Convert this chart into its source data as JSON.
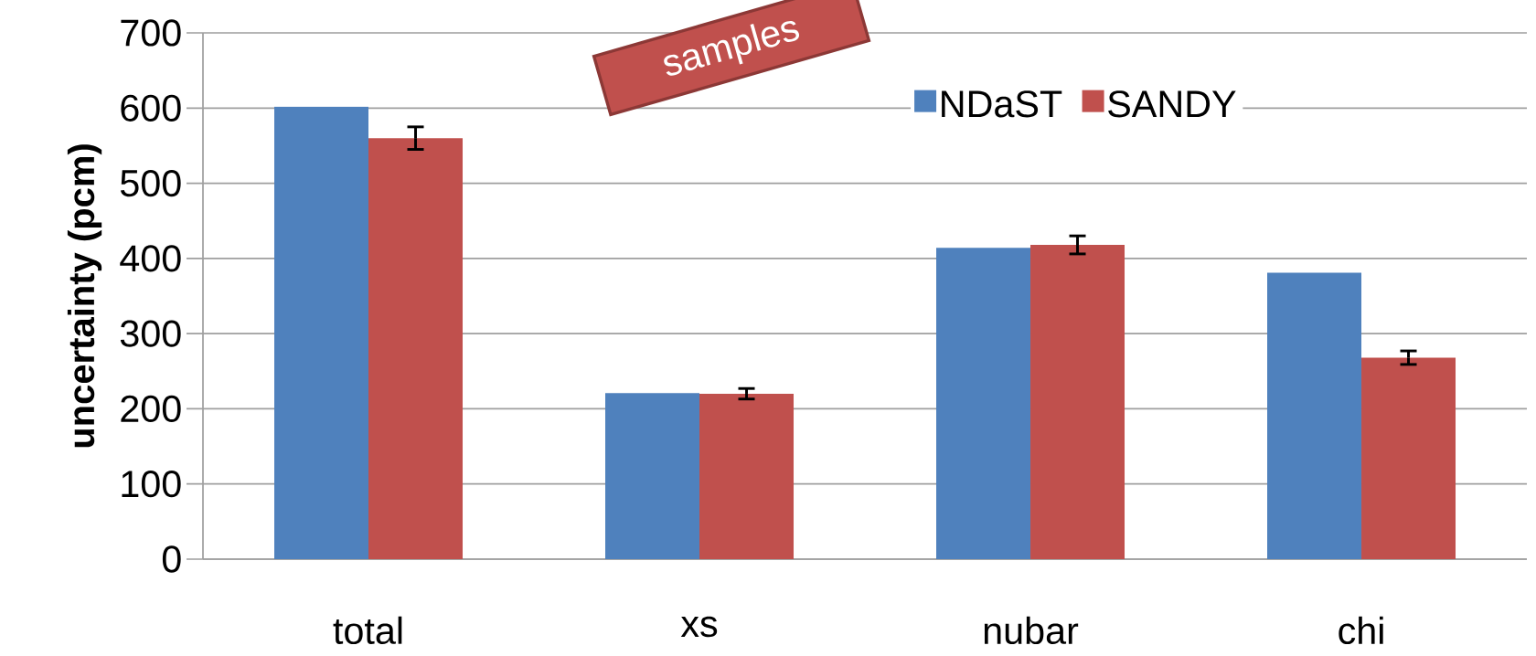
{
  "chart_data": {
    "type": "bar",
    "ylabel": "uncertainty (pcm)",
    "categories": [
      "total",
      "xs",
      "nubar",
      "chi"
    ],
    "series": [
      {
        "name": "NDaST",
        "color": "#4f81bd",
        "values": [
          602,
          221,
          414,
          381
        ]
      },
      {
        "name": "SANDY",
        "color": "#c0504d",
        "values": [
          560,
          220,
          418,
          268
        ],
        "errors": [
          15,
          7,
          12,
          9
        ]
      }
    ],
    "ylim": [
      0,
      700
    ],
    "yticks": [
      0,
      100,
      200,
      300,
      400,
      500,
      600,
      700
    ],
    "grid": "y",
    "legend": "top",
    "annotations": [
      "samples"
    ]
  }
}
